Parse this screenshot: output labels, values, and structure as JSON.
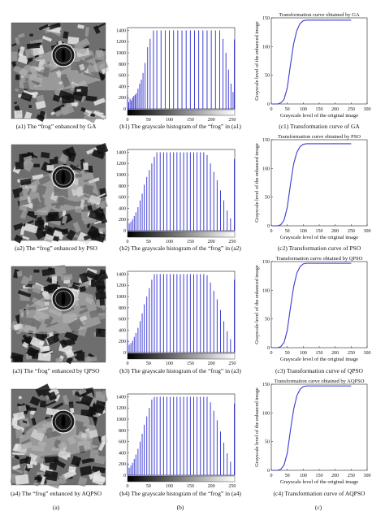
{
  "rows": [
    {
      "image_caption": "(a1) The “frog” enhanced by GA",
      "hist_caption": "(b1) The grayscale histogram of the “frog” in (a1)",
      "curve_title": "Transformation curve obtained by GA",
      "curve_caption": "(c1) Transformation curve of GA",
      "curve_xlabel": "Grayscale level of the original image",
      "curve_ylabel": "Grayscale level of the enhanced image"
    },
    {
      "image_caption": "(a2) The “frog” enhanced by PSO",
      "hist_caption": "(b2) The grayscale histogram of the “frog” in (a2)",
      "curve_title": "Transformation curve obtained by PSO",
      "curve_caption": "(c2) Transformation curve of PSO",
      "curve_xlabel": "Grayscale level of the original image",
      "curve_ylabel": "Grayscale level of the enhanced image"
    },
    {
      "image_caption": "(a3) The “frog” enhanced by QPSO",
      "hist_caption": "(b3) The grayscale histogram of the “frog” in (a3)",
      "curve_title": "Transformation curve obtained by QPSO",
      "curve_caption": "(c3) Transformation curve of QPSO",
      "curve_xlabel": "Grayscale level of the original image",
      "curve_ylabel": "Grayscale level of the enhanced image"
    },
    {
      "image_caption": "(a4) The “frog” enhanced by AQPSO",
      "hist_caption": "(b4) The grayscale histogram of the “frog” in (a4)",
      "curve_title": "Transformation curve obtained by AQPSO",
      "curve_caption": "(c4) Transformation curve of AQPSO",
      "curve_xlabel": "Grayscale level of the original image",
      "curve_ylabel": "Grayscale level of the enhanced image"
    }
  ],
  "column_labels": {
    "a": "(a)",
    "b": "(b)",
    "c": "(c)"
  },
  "chart_data": [
    {
      "type": "bar",
      "kind": "histogram",
      "x_ticks": [
        "0",
        "50",
        "100",
        "150",
        "200",
        "250"
      ],
      "y_ticks": [
        "0",
        "200",
        "400",
        "600",
        "800",
        "1000",
        "1200",
        "1400"
      ],
      "xlim": [
        0,
        256
      ],
      "ylim": [
        0,
        1450
      ],
      "bar_color": "#2b2bd0",
      "x": [
        0,
        3,
        6,
        9,
        12,
        15,
        18,
        21,
        25,
        29,
        33,
        37,
        42,
        48,
        54,
        62,
        70,
        80,
        90,
        100,
        110,
        120,
        130,
        140,
        150,
        160,
        170,
        180,
        190,
        200,
        210,
        220,
        228,
        235,
        241,
        247,
        252,
        255
      ],
      "values": [
        250,
        120,
        180,
        150,
        200,
        230,
        250,
        280,
        360,
        450,
        520,
        640,
        820,
        1100,
        1250,
        1400,
        1400,
        1400,
        1400,
        1400,
        1400,
        1400,
        1400,
        1400,
        1400,
        1400,
        1400,
        1400,
        1400,
        1400,
        1400,
        1400,
        1250,
        1000,
        700,
        450,
        300,
        1240
      ]
    },
    {
      "type": "bar",
      "kind": "histogram",
      "x_ticks": [
        "0",
        "50",
        "100",
        "150",
        "200",
        "250"
      ],
      "y_ticks": [
        "0",
        "200",
        "400",
        "600",
        "800",
        "1000",
        "1200",
        "1400"
      ],
      "xlim": [
        0,
        256
      ],
      "ylim": [
        0,
        1450
      ],
      "bar_color": "#2b2bd0",
      "x": [
        0,
        4,
        8,
        12,
        16,
        20,
        25,
        30,
        35,
        40,
        46,
        52,
        58,
        64,
        70,
        78,
        86,
        94,
        102,
        110,
        118,
        126,
        134,
        142,
        150,
        158,
        166,
        174,
        182,
        190,
        198,
        206,
        214,
        222,
        230,
        238,
        246,
        255
      ],
      "values": [
        220,
        130,
        160,
        200,
        260,
        330,
        420,
        540,
        660,
        820,
        960,
        1080,
        1200,
        1320,
        1400,
        1400,
        1400,
        1400,
        1400,
        1400,
        1400,
        1400,
        1400,
        1400,
        1400,
        1400,
        1400,
        1400,
        1400,
        1350,
        1200,
        1050,
        900,
        720,
        540,
        360,
        220,
        1280
      ]
    },
    {
      "type": "bar",
      "kind": "histogram",
      "x_ticks": [
        "0",
        "50",
        "100",
        "150",
        "200",
        "250"
      ],
      "y_ticks": [
        "0",
        "200",
        "400",
        "600",
        "800",
        "1000",
        "1200",
        "1400"
      ],
      "xlim": [
        0,
        256
      ],
      "ylim": [
        0,
        1450
      ],
      "bar_color": "#2b2bd0",
      "x": [
        0,
        4,
        8,
        12,
        16,
        20,
        25,
        30,
        35,
        40,
        46,
        52,
        58,
        64,
        70,
        78,
        86,
        94,
        102,
        110,
        118,
        126,
        134,
        142,
        150,
        158,
        166,
        174,
        182,
        190,
        198,
        206,
        214,
        222,
        230,
        238,
        246,
        255
      ],
      "values": [
        230,
        140,
        170,
        210,
        280,
        350,
        440,
        560,
        700,
        860,
        1000,
        1150,
        1300,
        1400,
        1400,
        1400,
        1400,
        1400,
        1400,
        1400,
        1400,
        1400,
        1400,
        1400,
        1400,
        1400,
        1400,
        1400,
        1400,
        1380,
        1250,
        1100,
        950,
        760,
        560,
        380,
        240,
        1300
      ]
    },
    {
      "type": "bar",
      "kind": "histogram",
      "x_ticks": [
        "0",
        "50",
        "100",
        "150",
        "200",
        "250"
      ],
      "y_ticks": [
        "0",
        "200",
        "400",
        "600",
        "800",
        "1000",
        "1200",
        "1400"
      ],
      "xlim": [
        0,
        256
      ],
      "ylim": [
        0,
        1450
      ],
      "bar_color": "#2b2bd0",
      "x": [
        0,
        4,
        8,
        12,
        16,
        20,
        25,
        30,
        35,
        40,
        46,
        52,
        58,
        64,
        70,
        78,
        86,
        94,
        102,
        110,
        118,
        126,
        134,
        142,
        150,
        158,
        166,
        174,
        182,
        190,
        198,
        206,
        214,
        222,
        230,
        238,
        246,
        255
      ],
      "values": [
        220,
        130,
        170,
        220,
        290,
        370,
        470,
        600,
        740,
        900,
        1050,
        1200,
        1350,
        1400,
        1400,
        1400,
        1400,
        1400,
        1400,
        1400,
        1400,
        1400,
        1400,
        1400,
        1400,
        1400,
        1400,
        1400,
        1400,
        1400,
        1300,
        1150,
        980,
        780,
        580,
        390,
        240,
        1280
      ]
    },
    {
      "type": "line",
      "x_ticks": [
        "0",
        "50",
        "100",
        "150",
        "200",
        "250",
        "300"
      ],
      "y_ticks": [
        "0",
        "50",
        "100",
        "150"
      ],
      "xlim": [
        0,
        300
      ],
      "ylim": [
        0,
        150
      ],
      "line_color": "#3a3acf",
      "x": [
        0,
        20,
        30,
        40,
        50,
        60,
        70,
        80,
        90,
        100,
        110,
        120,
        150,
        200,
        250
      ],
      "values": [
        0,
        0,
        2,
        8,
        28,
        68,
        105,
        128,
        140,
        145,
        146,
        146,
        146,
        146,
        146
      ]
    },
    {
      "type": "line",
      "x_ticks": [
        "0",
        "50",
        "100",
        "150",
        "200",
        "250",
        "300"
      ],
      "y_ticks": [
        "0",
        "50",
        "100",
        "150"
      ],
      "xlim": [
        0,
        300
      ],
      "ylim": [
        0,
        150
      ],
      "line_color": "#3a3acf",
      "x": [
        0,
        20,
        30,
        40,
        50,
        60,
        70,
        80,
        90,
        100,
        110,
        120,
        150,
        200,
        250
      ],
      "values": [
        0,
        0,
        2,
        10,
        32,
        72,
        108,
        128,
        138,
        142,
        143,
        143,
        143,
        143,
        143
      ]
    },
    {
      "type": "line",
      "x_ticks": [
        "0",
        "50",
        "100",
        "150",
        "200",
        "250",
        "300"
      ],
      "y_ticks": [
        "0",
        "50",
        "100",
        "150"
      ],
      "xlim": [
        0,
        300
      ],
      "ylim": [
        0,
        150
      ],
      "line_color": "#3a3acf",
      "x": [
        0,
        20,
        30,
        40,
        50,
        60,
        70,
        80,
        90,
        100,
        110,
        120,
        150,
        200,
        250
      ],
      "values": [
        0,
        0,
        2,
        9,
        30,
        70,
        106,
        130,
        141,
        146,
        147,
        147,
        147,
        147,
        147
      ]
    },
    {
      "type": "line",
      "x_ticks": [
        "0",
        "50",
        "100",
        "150",
        "200",
        "250",
        "300"
      ],
      "y_ticks": [
        "0",
        "50",
        "100",
        "150"
      ],
      "xlim": [
        0,
        300
      ],
      "ylim": [
        0,
        150
      ],
      "line_color": "#3a3acf",
      "x": [
        0,
        20,
        30,
        40,
        50,
        60,
        70,
        80,
        90,
        100,
        110,
        120,
        150,
        200,
        250
      ],
      "values": [
        0,
        0,
        2,
        9,
        30,
        70,
        106,
        130,
        141,
        146,
        147,
        147,
        147,
        147,
        147
      ]
    }
  ]
}
